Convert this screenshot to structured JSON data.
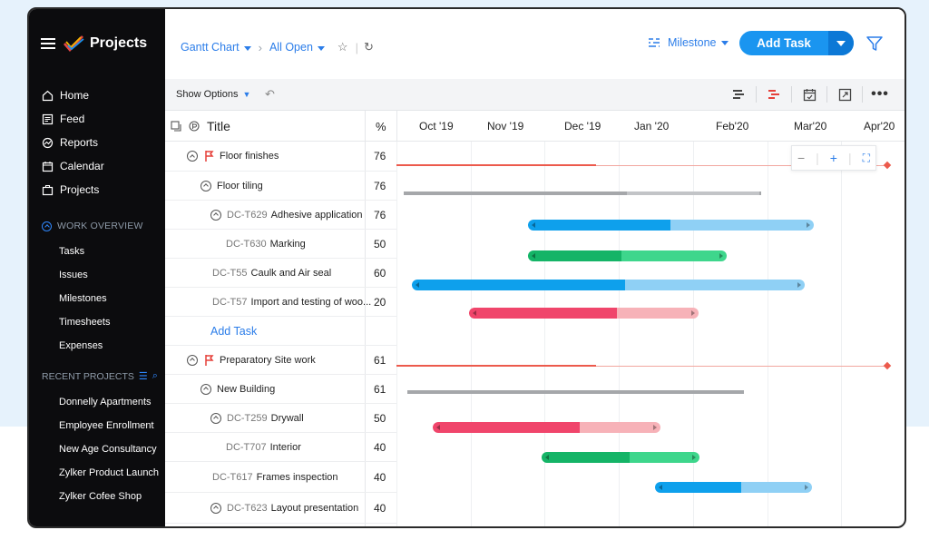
{
  "app": {
    "name": "Projects"
  },
  "sidebar": {
    "nav": [
      {
        "label": "Home",
        "icon": "home-icon"
      },
      {
        "label": "Feed",
        "icon": "feed-icon"
      },
      {
        "label": "Reports",
        "icon": "reports-icon"
      },
      {
        "label": "Calendar",
        "icon": "calendar-icon"
      },
      {
        "label": "Projects",
        "icon": "projects-icon"
      }
    ],
    "work_overview": {
      "label": "WORK OVERVIEW",
      "items": [
        "Tasks",
        "Issues",
        "Milestones",
        "Timesheets",
        "Expenses"
      ]
    },
    "recent_projects": {
      "label": "RECENT PROJECTS",
      "items": [
        "Donnelly Apartments",
        "Employee Enrollment",
        "New Age Consultancy",
        "Zylker Product Launch",
        "Zylker Cofee Shop"
      ]
    }
  },
  "topbar": {
    "view": "Gantt Chart",
    "filter": "All Open",
    "milestone": "Milestone",
    "add_task": "Add Task"
  },
  "toolbar": {
    "show_options": "Show Options"
  },
  "table": {
    "col_title": "Title",
    "col_pct": "%",
    "months": [
      "Oct '19",
      "Nov '19",
      "Dec '19",
      "Jan '20",
      "Feb'20",
      "Mar'20",
      "Apr'20"
    ],
    "rows": [
      {
        "id": "",
        "title": "Floor finishes",
        "pct": "76",
        "type": "milestone"
      },
      {
        "id": "",
        "title": "Floor tiling",
        "pct": "76",
        "type": "group"
      },
      {
        "id": "DC-T629",
        "title": "Adhesive application",
        "pct": "76",
        "type": "task"
      },
      {
        "id": "DC-T630",
        "title": "Marking",
        "pct": "50",
        "type": "task"
      },
      {
        "id": "DC-T55",
        "title": "Caulk and Air seal",
        "pct": "60",
        "type": "task"
      },
      {
        "id": "DC-T57",
        "title": "Import and testing of woo...",
        "pct": "20",
        "type": "task"
      },
      {
        "id": "",
        "title": "Add Task",
        "pct": "",
        "type": "add"
      },
      {
        "id": "",
        "title": "Preparatory Site work",
        "pct": "61",
        "type": "milestone"
      },
      {
        "id": "",
        "title": "New Building",
        "pct": "61",
        "type": "group"
      },
      {
        "id": "DC-T259",
        "title": "Drywall",
        "pct": "50",
        "type": "task"
      },
      {
        "id": "DC-T707",
        "title": "Interior",
        "pct": "40",
        "type": "task"
      },
      {
        "id": "DC-T617",
        "title": "Frames inspection",
        "pct": "40",
        "type": "task"
      },
      {
        "id": "DC-T623",
        "title": "Layout presentation",
        "pct": "40",
        "type": "task"
      }
    ]
  },
  "colors": {
    "blue": "#0ea0ec",
    "blue_light": "#8fd0f5",
    "green": "#15b467",
    "green_light": "#3ed68c",
    "pink": "#f0456b",
    "pink_light": "#f7b2b8",
    "red_line": "#ec5a4c",
    "gray": "#a5a7aa"
  }
}
